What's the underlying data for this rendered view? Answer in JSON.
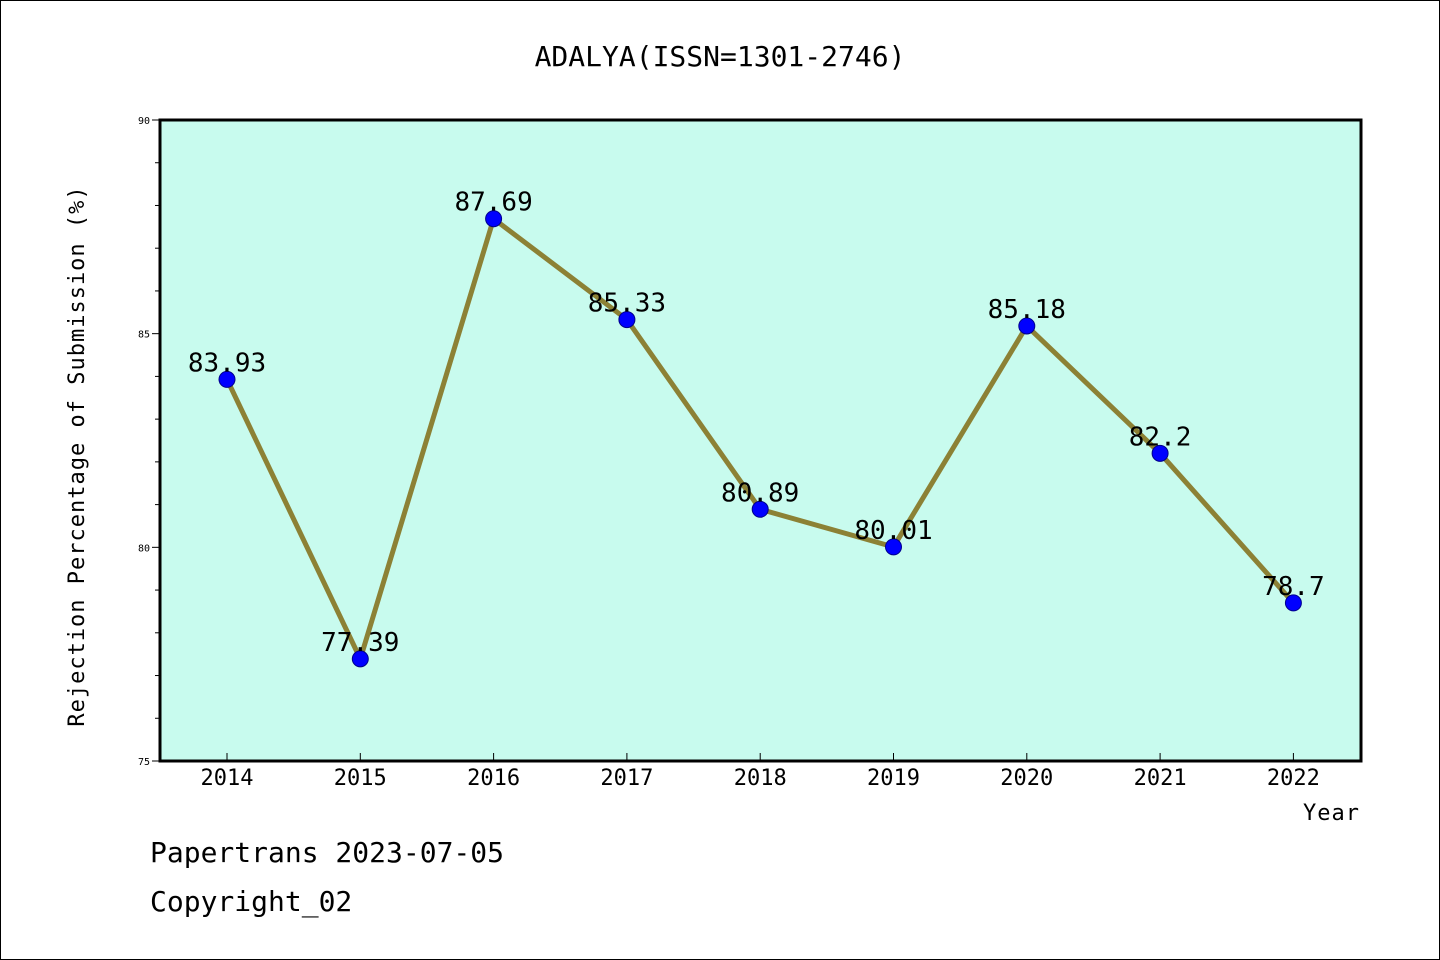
{
  "chart_data": {
    "type": "line",
    "title": "ADALYA(ISSN=1301-2746)",
    "xlabel": "Year",
    "ylabel": "Rejection Percentage of Submission (%)",
    "categories": [
      "2014",
      "2015",
      "2016",
      "2017",
      "2018",
      "2019",
      "2020",
      "2021",
      "2022"
    ],
    "values": [
      83.93,
      77.39,
      87.69,
      85.33,
      80.89,
      80.01,
      85.18,
      82.2,
      78.7
    ],
    "data_labels": [
      "83.93",
      "77.39",
      "87.69",
      "85.33",
      "80.89",
      "80.01",
      "85.18",
      "82.2",
      "78.7"
    ],
    "ylim": [
      75,
      90
    ],
    "yticks": [
      75,
      80,
      85,
      90
    ],
    "grid": false,
    "colors": {
      "plot_background": "#c8fbee",
      "line": "#8c8135",
      "marker": "#0000ff"
    }
  },
  "footer": {
    "line1": "Papertrans 2023-07-05",
    "line2": "Copyright_02"
  }
}
